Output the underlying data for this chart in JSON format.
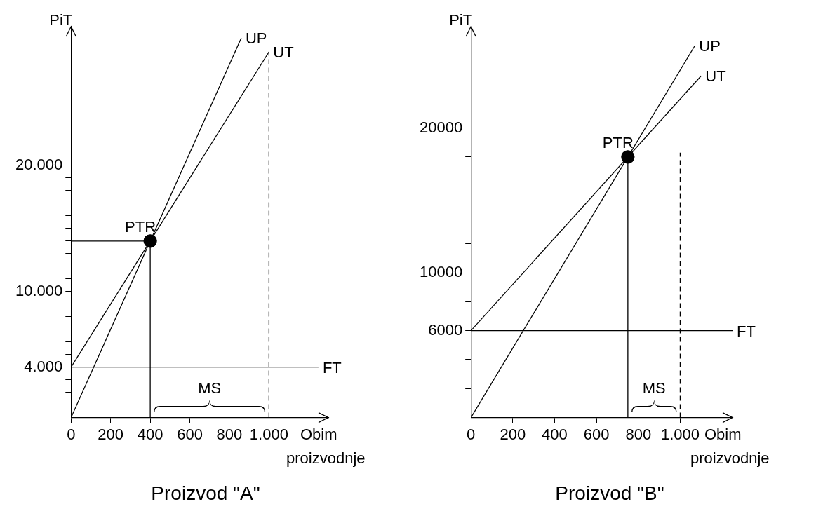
{
  "chart_data": [
    {
      "type": "line",
      "title": "Proizvod \"A\"",
      "xlabel": "Obim proizvodnje",
      "ylabel": "PiT",
      "xlim": [
        0,
        1300
      ],
      "ylim": [
        0,
        31000
      ],
      "xticks": [
        0,
        200,
        400,
        600,
        800,
        {
          "value": 1000,
          "label": "1.000"
        }
      ],
      "yticks": [
        {
          "value": 1000,
          "label": null
        },
        {
          "value": 2000,
          "label": null
        },
        {
          "value": 3000,
          "label": null
        },
        {
          "value": 4000,
          "label": "4.000"
        },
        {
          "value": 5000,
          "label": null
        },
        {
          "value": 6000,
          "label": null
        },
        {
          "value": 7000,
          "label": null
        },
        {
          "value": 8000,
          "label": null
        },
        {
          "value": 9000,
          "label": null
        },
        {
          "value": 10000,
          "label": "10.000"
        },
        {
          "value": 11000,
          "label": null
        },
        {
          "value": 12000,
          "label": null
        },
        {
          "value": 13000,
          "label": null
        },
        {
          "value": 14000,
          "label": null
        },
        {
          "value": 15000,
          "label": null
        },
        {
          "value": 16000,
          "label": null
        },
        {
          "value": 17000,
          "label": null
        },
        {
          "value": 18000,
          "label": null
        },
        {
          "value": 19000,
          "label": null
        },
        {
          "value": 20000,
          "label": "20.000"
        }
      ],
      "series": [
        {
          "name": "UT",
          "color": "#000000",
          "x": [
            0,
            1000
          ],
          "values": [
            4000,
            29000
          ]
        },
        {
          "name": "UP",
          "color": "#000000",
          "x": [
            0,
            860
          ],
          "values": [
            0,
            30100
          ]
        },
        {
          "name": "FT",
          "color": "#000000",
          "x": [
            0,
            1250
          ],
          "values": [
            4000,
            4000
          ]
        },
        {
          "color": "#000000",
          "x": [
            0,
            400
          ],
          "values": [
            14000,
            14000
          ]
        },
        {
          "color": "#000000",
          "x": [
            400,
            400
          ],
          "values": [
            14000,
            0
          ]
        },
        {
          "color": "#000000",
          "x": [
            1000,
            1000
          ],
          "values": [
            0,
            29000
          ],
          "line_style": "dashed"
        },
        {
          "type": "scatter",
          "color": "#000000",
          "x": [
            400
          ],
          "values": [
            14000
          ],
          "marker": "circle"
        }
      ],
      "annotations": [
        {
          "text": "PTR",
          "x": 400,
          "y": 14000
        },
        "MS"
      ]
    },
    {
      "type": "line",
      "title": "Proizvod \"B\"",
      "xlabel": "Obim proizvodnje",
      "ylabel": "PiT",
      "xlim": [
        0,
        1250
      ],
      "ylim": [
        0,
        27000
      ],
      "xticks": [
        0,
        200,
        400,
        600,
        800,
        {
          "value": 1000,
          "label": "1.000"
        }
      ],
      "yticks": [
        {
          "value": 2000,
          "label": null
        },
        {
          "value": 4000,
          "label": null
        },
        6000,
        {
          "value": 8000,
          "label": null
        },
        10000,
        {
          "value": 12000,
          "label": null
        },
        {
          "value": 14000,
          "label": null
        },
        {
          "value": 16000,
          "label": null
        },
        {
          "value": 18000,
          "label": null
        },
        20000
      ],
      "series": [
        {
          "name": "UT",
          "color": "#000000",
          "x": [
            0,
            1100
          ],
          "values": [
            6000,
            23600
          ]
        },
        {
          "name": "UP",
          "color": "#000000",
          "x": [
            0,
            1070
          ],
          "values": [
            0,
            25680
          ]
        },
        {
          "name": "FT",
          "color": "#000000",
          "x": [
            0,
            1250
          ],
          "values": [
            6000,
            6000
          ]
        },
        {
          "color": "#000000",
          "x": [
            750,
            750
          ],
          "values": [
            18000,
            0
          ]
        },
        {
          "color": "#000000",
          "x": [
            1000,
            1000
          ],
          "values": [
            0,
            18300
          ],
          "line_style": "dashed"
        },
        {
          "type": "scatter",
          "color": "#000000",
          "x": [
            750
          ],
          "values": [
            18000
          ],
          "marker": "circle"
        }
      ],
      "annotations": [
        {
          "text": "PTR",
          "x": 750,
          "y": 18000
        },
        "MS"
      ]
    }
  ]
}
